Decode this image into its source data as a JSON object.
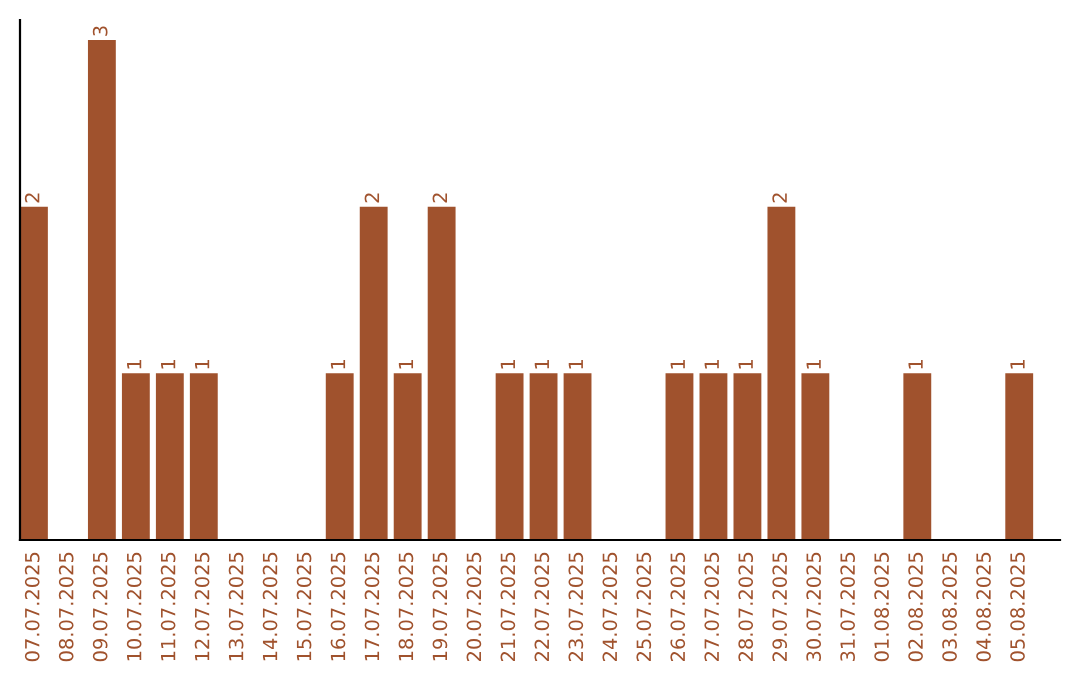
{
  "chart_data": {
    "type": "bar",
    "categories": [
      "07.07.2025",
      "08.07.2025",
      "09.07.2025",
      "10.07.2025",
      "11.07.2025",
      "12.07.2025",
      "13.07.2025",
      "14.07.2025",
      "15.07.2025",
      "16.07.2025",
      "17.07.2025",
      "18.07.2025",
      "19.07.2025",
      "20.07.2025",
      "21.07.2025",
      "22.07.2025",
      "23.07.2025",
      "24.07.2025",
      "25.07.2025",
      "26.07.2025",
      "27.07.2025",
      "28.07.2025",
      "29.07.2025",
      "30.07.2025",
      "31.07.2025",
      "01.08.2025",
      "02.08.2025",
      "03.08.2025",
      "04.08.2025",
      "05.08.2025"
    ],
    "values": [
      2,
      0,
      3,
      1,
      1,
      1,
      0,
      0,
      0,
      1,
      2,
      1,
      2,
      0,
      1,
      1,
      1,
      0,
      0,
      1,
      1,
      1,
      2,
      1,
      0,
      0,
      1,
      0,
      0,
      1
    ],
    "value_labels": [
      "2",
      null,
      "3",
      "1",
      "1",
      "1",
      null,
      null,
      null,
      "1",
      "2",
      "1",
      "2",
      null,
      "1",
      "1",
      "1",
      null,
      null,
      "1",
      "1",
      "1",
      "2",
      "1",
      null,
      null,
      "1",
      null,
      null,
      "1"
    ],
    "color": "#a0522d",
    "ylim": [
      0,
      3.12
    ],
    "tick_labels": "x",
    "grid": false,
    "legend": false
  }
}
